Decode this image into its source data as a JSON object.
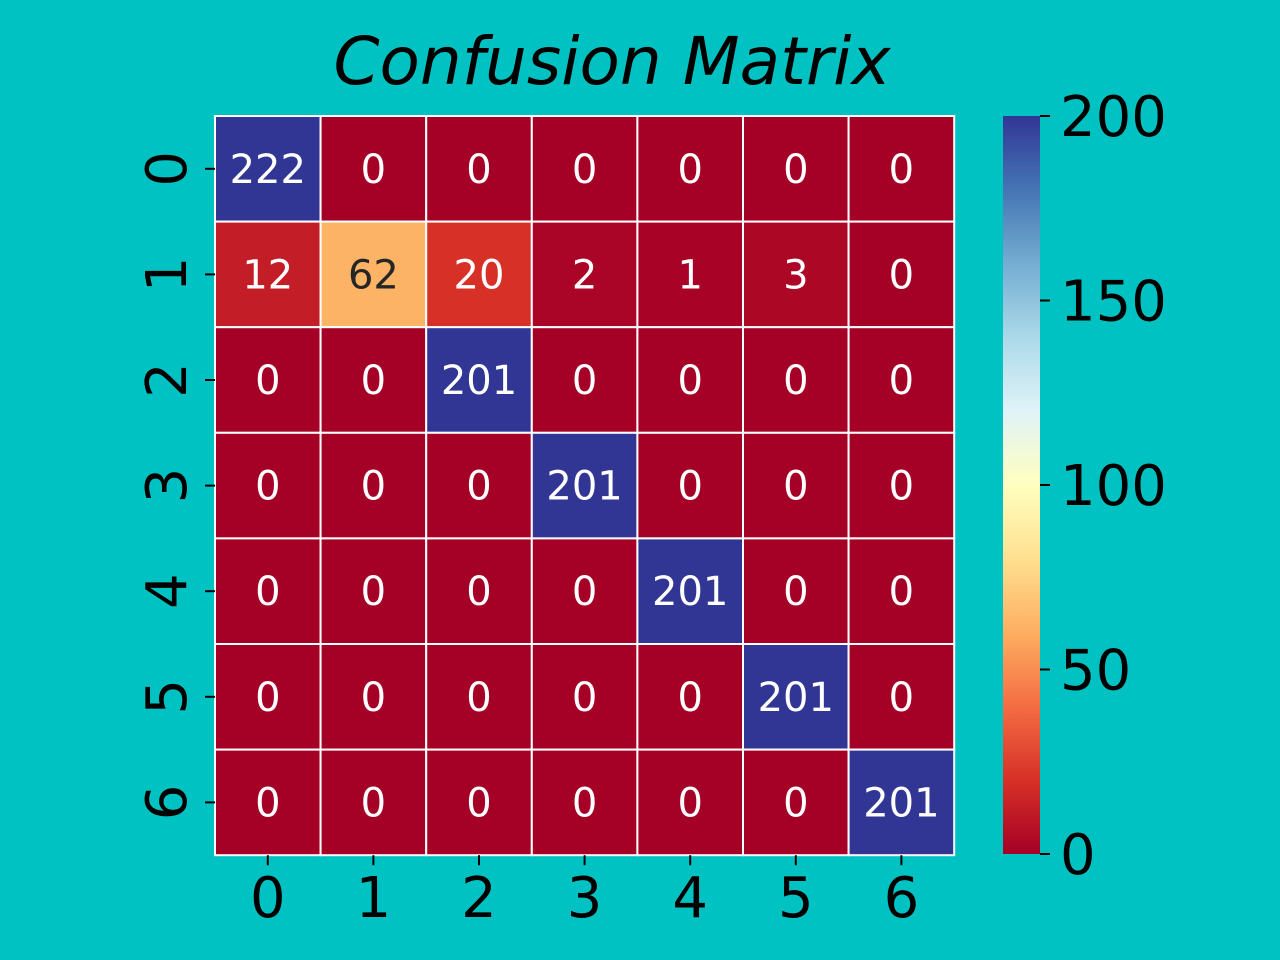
{
  "chart_data": {
    "type": "heatmap",
    "title": "Confusion Matrix",
    "xlabel": "",
    "ylabel": "",
    "x_categories": [
      "0",
      "1",
      "2",
      "3",
      "4",
      "5",
      "6"
    ],
    "y_categories": [
      "0",
      "1",
      "2",
      "3",
      "4",
      "5",
      "6"
    ],
    "values": [
      [
        222,
        0,
        0,
        0,
        0,
        0,
        0
      ],
      [
        12,
        62,
        20,
        2,
        1,
        3,
        0
      ],
      [
        0,
        0,
        201,
        0,
        0,
        0,
        0
      ],
      [
        0,
        0,
        0,
        201,
        0,
        0,
        0
      ],
      [
        0,
        0,
        0,
        0,
        201,
        0,
        0
      ],
      [
        0,
        0,
        0,
        0,
        0,
        201,
        0
      ],
      [
        0,
        0,
        0,
        0,
        0,
        0,
        201
      ]
    ],
    "colorbar": {
      "colormap": "RdYlBu",
      "range": [
        0,
        200
      ],
      "ticks": [
        "0",
        "50",
        "100",
        "150",
        "200"
      ],
      "tick_values": [
        0,
        50,
        100,
        150,
        200
      ]
    },
    "annotations": true
  },
  "colors": {
    "background": "#00C2C2",
    "cell_border": "#FFFFFF",
    "text_light": "#FFFFFF",
    "text_dark": "#262626"
  }
}
